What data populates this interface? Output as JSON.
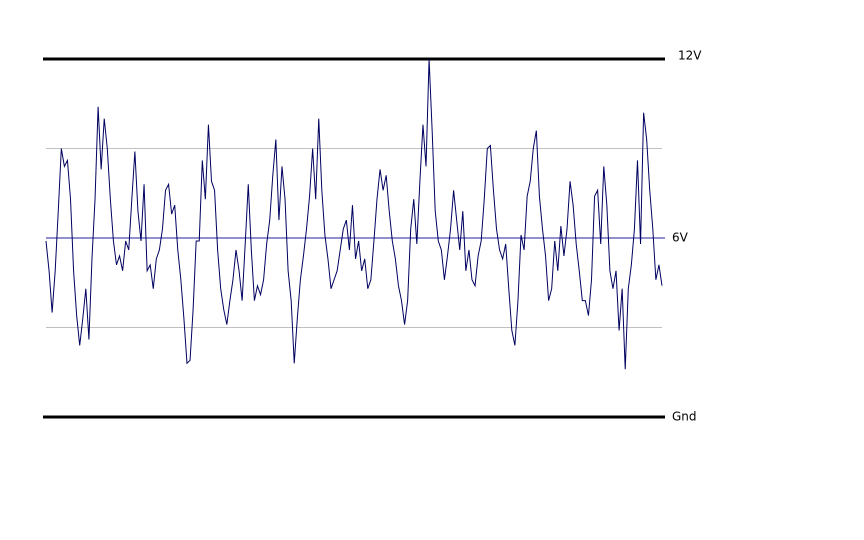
{
  "chart_data": {
    "type": "line",
    "yticks": [
      {
        "value": 0,
        "label": "Gnd"
      },
      {
        "value": 6,
        "label": "6V"
      },
      {
        "value": 12,
        "label": "12V"
      }
    ],
    "ytick_line_colors": [
      "#000000",
      "#20209a",
      "#000000"
    ],
    "minor_yticks": [
      3,
      9
    ],
    "grid": true,
    "grid_color": "#c0c0c0",
    "ylim": [
      0,
      12
    ],
    "series": [
      {
        "color": "#000060",
        "values": [
          5.9,
          4.9,
          3.5,
          4.9,
          6.9,
          9.0,
          8.4,
          8.6,
          7.3,
          4.9,
          3.4,
          2.4,
          3.3,
          4.3,
          2.6,
          5.3,
          7.3,
          10.4,
          8.3,
          10.0,
          9.0,
          7.3,
          5.9,
          5.1,
          5.4,
          4.9,
          5.9,
          5.6,
          7.3,
          8.9,
          6.9,
          5.9,
          7.8,
          4.9,
          5.1,
          4.3,
          5.3,
          5.6,
          6.3,
          7.6,
          7.8,
          6.8,
          7.1,
          5.6,
          4.6,
          3.3,
          1.8,
          1.9,
          3.6,
          5.9,
          5.9,
          8.6,
          7.3,
          9.8,
          7.9,
          7.6,
          5.6,
          4.3,
          3.6,
          3.1,
          3.9,
          4.6,
          5.6,
          4.9,
          3.9,
          5.8,
          7.8,
          5.6,
          3.9,
          4.4,
          4.1,
          4.6,
          5.8,
          6.6,
          8.1,
          9.3,
          6.6,
          8.4,
          7.3,
          4.9,
          3.9,
          1.8,
          3.3,
          4.6,
          5.4,
          6.3,
          7.4,
          9.0,
          7.3,
          10.0,
          7.6,
          6.1,
          5.3,
          4.3,
          4.6,
          4.9,
          5.6,
          6.3,
          6.6,
          5.6,
          7.1,
          5.3,
          5.9,
          4.9,
          5.3,
          4.3,
          4.6,
          5.9,
          7.3,
          8.3,
          7.6,
          8.1,
          6.9,
          5.9,
          5.3,
          4.4,
          3.9,
          3.1,
          3.9,
          6.3,
          7.3,
          5.8,
          7.9,
          9.8,
          8.4,
          12.0,
          9.6,
          6.9,
          5.9,
          5.6,
          4.6,
          5.4,
          6.3,
          7.6,
          6.6,
          5.6,
          6.9,
          4.9,
          5.6,
          4.6,
          4.4,
          5.4,
          5.9,
          7.3,
          9.0,
          9.1,
          7.6,
          6.3,
          5.6,
          5.3,
          5.8,
          4.3,
          2.9,
          2.4,
          3.9,
          6.1,
          5.6,
          7.4,
          7.9,
          9.0,
          9.6,
          7.4,
          6.3,
          5.4,
          3.9,
          4.3,
          5.9,
          4.9,
          6.4,
          5.4,
          6.3,
          7.9,
          7.1,
          5.8,
          4.9,
          3.9,
          3.9,
          3.4,
          4.6,
          7.4,
          7.6,
          5.8,
          8.4,
          7.1,
          4.9,
          4.3,
          4.9,
          2.9,
          4.3,
          1.6,
          4.3,
          5.1,
          6.3,
          8.6,
          5.8,
          10.2,
          9.3,
          7.6,
          6.3,
          4.6,
          5.1,
          4.4
        ]
      }
    ]
  }
}
